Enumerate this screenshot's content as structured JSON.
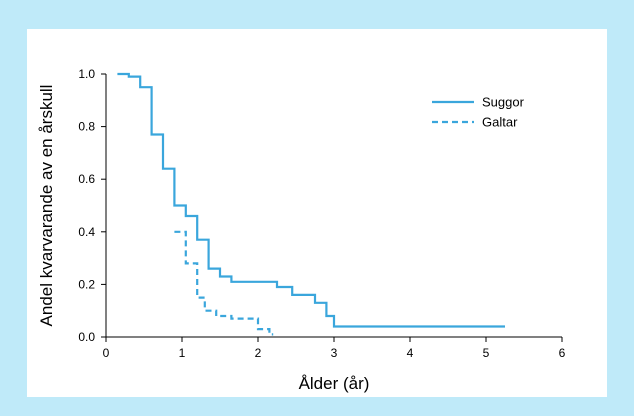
{
  "chart_data": {
    "type": "line",
    "step": true,
    "xlabel": "Ålder (år)",
    "ylabel": "Andel kvarvarande av en årskull",
    "xlim": [
      0,
      6
    ],
    "ylim": [
      0,
      1.0
    ],
    "x_ticks": [
      "0",
      "1",
      "2",
      "3",
      "4",
      "5",
      "6"
    ],
    "y_ticks": [
      "0.0",
      "0.2",
      "0.4",
      "0.6",
      "0.8",
      "1.0"
    ],
    "grid": false,
    "legend_position": "top-right",
    "series_color": "#3aa6dc",
    "series": [
      {
        "name": "Suggor",
        "style": "solid",
        "x": [
          0.15,
          0.3,
          0.45,
          0.6,
          0.75,
          0.9,
          1.05,
          1.2,
          1.35,
          1.5,
          1.65,
          2.25,
          2.45,
          2.75,
          2.9,
          3.0,
          5.25
        ],
        "y": [
          1.0,
          0.99,
          0.95,
          0.77,
          0.64,
          0.5,
          0.46,
          0.37,
          0.26,
          0.23,
          0.21,
          0.19,
          0.16,
          0.13,
          0.08,
          0.04,
          0.04
        ]
      },
      {
        "name": "Galtar",
        "style": "dashed",
        "x": [
          0.9,
          1.05,
          1.2,
          1.3,
          1.45,
          1.65,
          2.0,
          2.15,
          2.2
        ],
        "y": [
          0.4,
          0.28,
          0.15,
          0.1,
          0.08,
          0.07,
          0.03,
          0.01,
          0.01
        ]
      }
    ]
  }
}
